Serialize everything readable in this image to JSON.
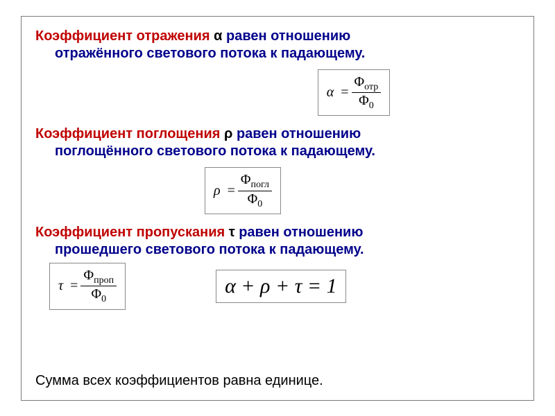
{
  "title_color": "#c00000",
  "body_color": "#00008b",
  "border_color": "#7a7a7a",
  "box_border": "#888888",
  "background": "#ffffff",
  "sections": {
    "reflection": {
      "term": "Коэффициент отражения ",
      "symbol": "α ",
      "tail1": "равен отношению",
      "tail2": "отражённого светового потока к падающему.",
      "formula": {
        "lhs": "α",
        "num_main": "Φ",
        "num_sub": "отр",
        "den_main": "Φ",
        "den_sub": "0"
      }
    },
    "absorption": {
      "term": "Коэффициент поглощения  ",
      "symbol": "ρ ",
      "tail1": "равен отношению",
      "tail2": "поглощённого светового потока к падающему.",
      "formula": {
        "lhs": "ρ",
        "num_main": "Φ",
        "num_sub": "погл",
        "den_main": "Φ",
        "den_sub": "0"
      }
    },
    "transmission": {
      "term": "Коэффициент пропускания  ",
      "symbol": "τ ",
      "tail1": "равен отношению",
      "tail2": "прошедшего  светового потока к падающему.",
      "formula": {
        "lhs": "τ",
        "num_main": "Φ",
        "num_sub": "проп",
        "den_main": "Φ",
        "den_sub": "0"
      }
    },
    "sum_eq": "α + ρ + τ = 1",
    "summary": "Сумма всех коэффициентов равна единице."
  }
}
